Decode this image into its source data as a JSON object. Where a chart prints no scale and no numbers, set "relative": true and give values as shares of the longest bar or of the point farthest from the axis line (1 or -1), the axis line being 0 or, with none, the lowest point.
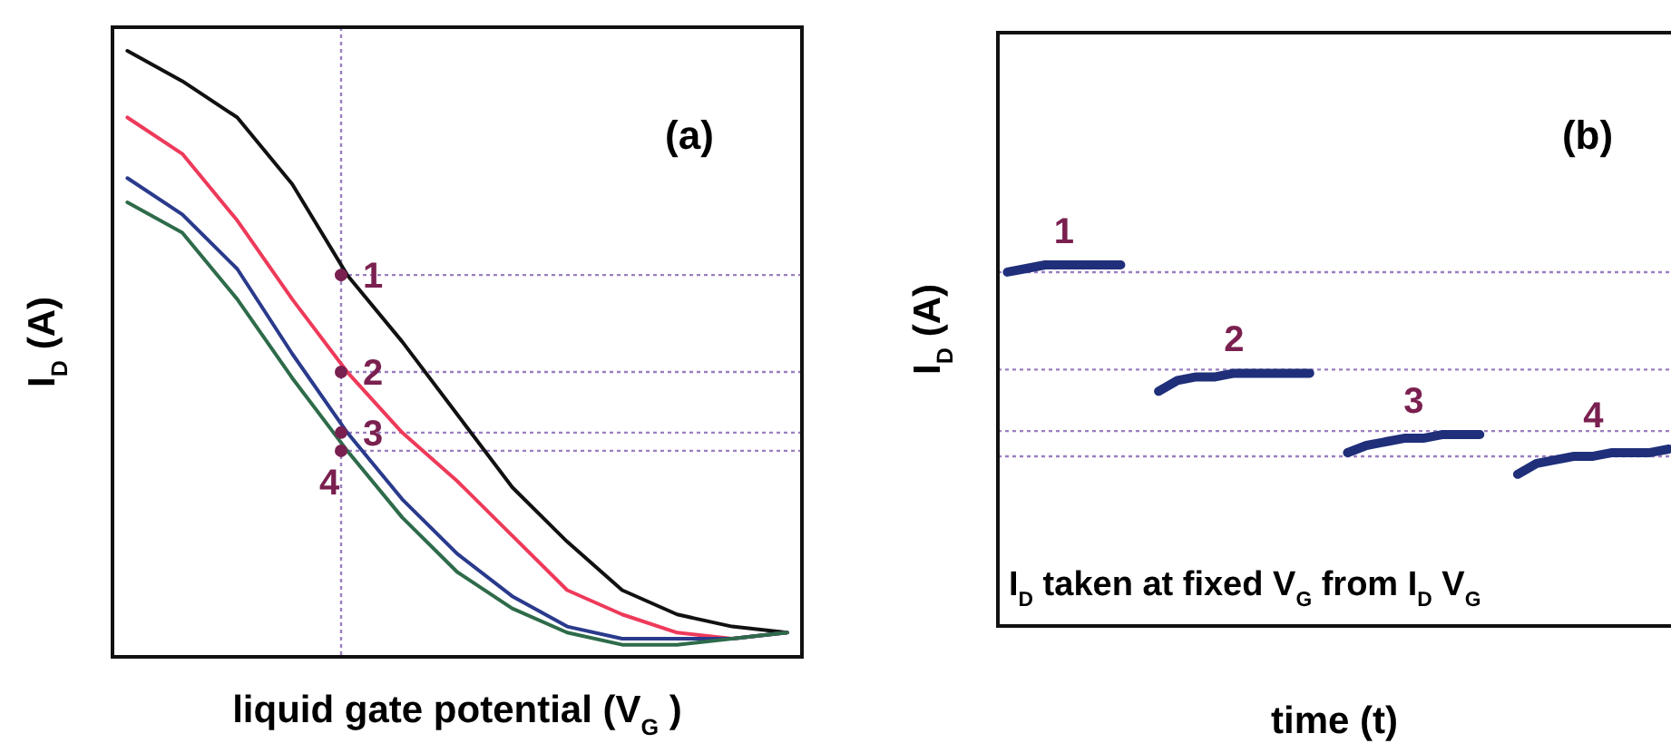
{
  "chart_data": [
    {
      "type": "line",
      "title": "(a)",
      "xlabel": "liquid gate potential (V$_{G}$)",
      "ylabel": "I$_{D}$ (A)",
      "relative": true,
      "categories": [
        null,
        null,
        null,
        null,
        null,
        null,
        null,
        null,
        null,
        null,
        null,
        null,
        null
      ],
      "series": [
        {
          "color": "#111111",
          "values": [
            1.0,
            0.95,
            0.89,
            0.78,
            0.63,
            0.52,
            0.4,
            0.28,
            0.19,
            0.11,
            0.07,
            0.05,
            0.04
          ]
        },
        {
          "color": "#ee3a5a",
          "values": [
            0.89,
            0.83,
            0.72,
            0.59,
            0.47,
            0.37,
            0.29,
            0.2,
            0.11,
            0.07,
            0.04,
            0.03,
            0.04
          ]
        },
        {
          "color": "#2a3a8c",
          "values": [
            0.79,
            0.73,
            0.64,
            0.5,
            0.37,
            0.26,
            0.17,
            0.1,
            0.05,
            0.03,
            0.03,
            0.03,
            0.04
          ]
        },
        {
          "color": "#2e6b4a",
          "values": [
            0.75,
            0.7,
            0.59,
            0.46,
            0.34,
            0.23,
            0.14,
            0.08,
            0.04,
            0.02,
            0.02,
            0.03,
            0.04
          ]
        }
      ],
      "ref_lines": [
        {
          "axis": "y",
          "value": 0.63,
          "color": "#9a7fc0",
          "line_style": "dotted"
        },
        {
          "axis": "y",
          "value": 0.47,
          "color": "#9a7fc0",
          "line_style": "dotted"
        },
        {
          "axis": "y",
          "value": 0.37,
          "color": "#9a7fc0",
          "line_style": "dotted"
        },
        {
          "axis": "y",
          "value": 0.34,
          "color": "#9a7fc0",
          "line_style": "dotted"
        }
      ],
      "annotations": [
        {
          "text": "1",
          "y": 0.63
        },
        {
          "text": "2",
          "y": 0.47
        },
        {
          "text": "3",
          "y": 0.37
        },
        {
          "text": "4",
          "y": 0.34
        }
      ]
    },
    {
      "type": "line",
      "title": "(b)",
      "xlabel": "time (t)",
      "ylabel": "I$_{D}$ (A)",
      "relative": true,
      "categories": [
        null,
        null,
        null,
        null,
        null,
        null,
        null,
        null,
        null,
        null,
        null,
        null,
        null,
        null,
        null,
        null,
        null,
        null,
        null,
        null,
        null,
        null,
        null,
        null,
        null,
        null,
        null,
        null,
        null,
        null,
        null,
        null,
        null,
        null,
        null,
        null
      ],
      "series": [
        {
          "color": "#1f2f7a",
          "values": [
            0.98,
            0.99,
            1,
            1,
            1,
            1,
            1,
            null,
            null,
            null,
            null,
            null,
            null,
            null,
            null,
            null,
            null,
            null,
            null,
            null,
            null,
            null,
            null,
            null,
            null,
            null,
            null,
            null,
            null,
            null,
            null,
            null,
            null,
            null,
            null,
            null
          ]
        },
        {
          "color": "#1f2f7a",
          "values": [
            null,
            null,
            null,
            null,
            null,
            null,
            null,
            null,
            0.65,
            0.68,
            0.69,
            0.69,
            0.7,
            0.7,
            0.7,
            0.7,
            0.7,
            null,
            null,
            null,
            null,
            null,
            null,
            null,
            null,
            null,
            null,
            null,
            null,
            null,
            null,
            null,
            null,
            null,
            null,
            null
          ]
        },
        {
          "color": "#1f2f7a",
          "values": [
            null,
            null,
            null,
            null,
            null,
            null,
            null,
            null,
            null,
            null,
            null,
            null,
            null,
            null,
            null,
            null,
            null,
            null,
            0.48,
            0.5,
            0.51,
            0.52,
            0.52,
            0.53,
            0.53,
            0.53,
            null,
            null,
            null,
            null,
            null,
            null,
            null,
            null,
            null,
            null
          ]
        },
        {
          "color": "#1f2f7a",
          "values": [
            null,
            null,
            null,
            null,
            null,
            null,
            null,
            null,
            null,
            null,
            null,
            null,
            null,
            null,
            null,
            null,
            null,
            null,
            null,
            null,
            null,
            null,
            null,
            null,
            null,
            null,
            null,
            0.42,
            0.45,
            0.46,
            0.47,
            0.47,
            0.48,
            0.48,
            0.48,
            0.49
          ]
        }
      ],
      "ref_lines": [
        {
          "axis": "y",
          "value": 0.98,
          "color": "#9a7fc0",
          "line_style": "dotted"
        },
        {
          "axis": "y",
          "value": 0.71,
          "color": "#9a7fc0",
          "line_style": "dotted"
        },
        {
          "axis": "y",
          "value": 0.54,
          "color": "#9a7fc0",
          "line_style": "dotted"
        },
        {
          "axis": "y",
          "value": 0.47,
          "color": "#9a7fc0",
          "line_style": "dotted"
        }
      ],
      "annotations": [
        "1",
        "2",
        "3",
        "4",
        "I$_{D}$ taken at fixed V$_{G}$ from I$_{D}$V$_{G}$"
      ]
    }
  ]
}
